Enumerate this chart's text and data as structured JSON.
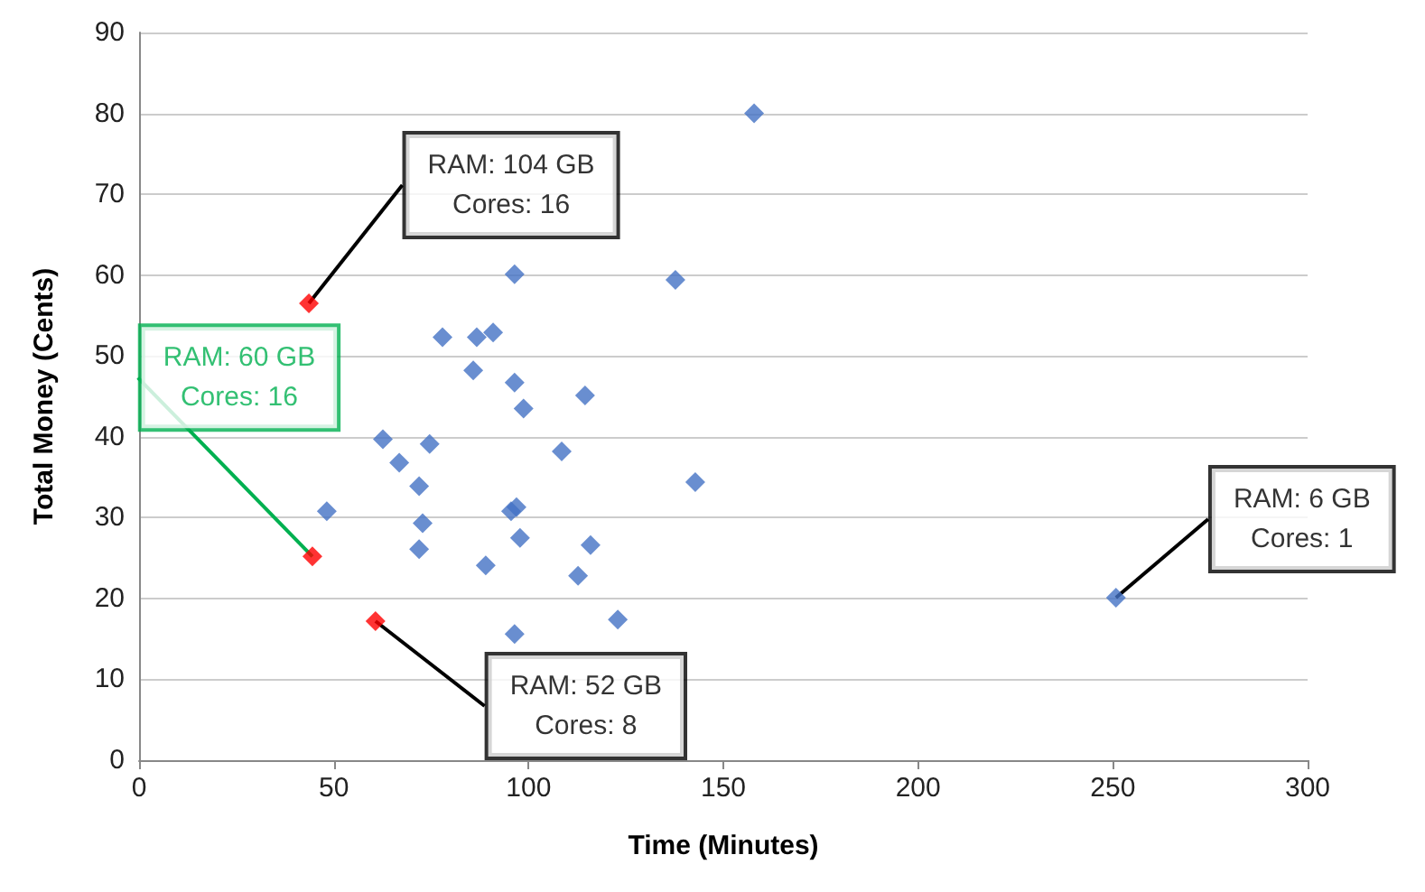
{
  "chart_data": {
    "type": "scatter",
    "xlabel": "Time (Minutes)",
    "ylabel": "Total Money (Cents)",
    "xlim": [
      0,
      300
    ],
    "xticks": [
      0,
      50,
      100,
      150,
      200,
      250,
      300
    ],
    "ylim": [
      0,
      90
    ],
    "yticks": [
      0,
      10,
      20,
      30,
      40,
      50,
      60,
      70,
      80,
      90
    ],
    "grid": "y",
    "marker": "diamond",
    "series": [
      {
        "color": "#4472c4",
        "x": [
          96.4,
          137.7,
          77.9,
          86.7,
          90.9,
          85.8,
          96.4,
          98.7,
          114.5,
          62.6,
          74.6,
          66.8,
          108.5,
          71.9,
          142.8,
          48.2,
          95.5,
          96.9,
          72.8,
          97.8,
          115.9,
          71.9,
          89.0,
          112.7,
          122.9,
          96.4,
          157.9,
          250.8
        ],
        "values": [
          60.1,
          59.4,
          52.3,
          52.3,
          52.9,
          48.2,
          46.7,
          43.5,
          45.1,
          39.7,
          39.1,
          36.8,
          38.2,
          33.9,
          34.4,
          30.8,
          30.8,
          31.3,
          29.3,
          27.5,
          26.6,
          26.1,
          24.1,
          22.8,
          17.4,
          15.6,
          80.0,
          20.1
        ]
      },
      {
        "color": "#ff0000",
        "x": [
          43.6,
          44.5,
          60.7
        ],
        "values": [
          56.5,
          25.2,
          17.2
        ]
      }
    ],
    "annotations": [
      {
        "text": "RAM: 104 GB\nCores: 16",
        "x": 43.6,
        "y": 56.5
      },
      {
        "text": "RAM: 60 GB\nCores: 16",
        "x": 44.5,
        "y": 25.2
      },
      {
        "text": "RAM: 52 GB\nCores: 8",
        "x": 60.7,
        "y": 17.2
      },
      {
        "text": "RAM: 6 GB\nCores: 1",
        "x": 250.8,
        "y": 20.1
      }
    ]
  }
}
